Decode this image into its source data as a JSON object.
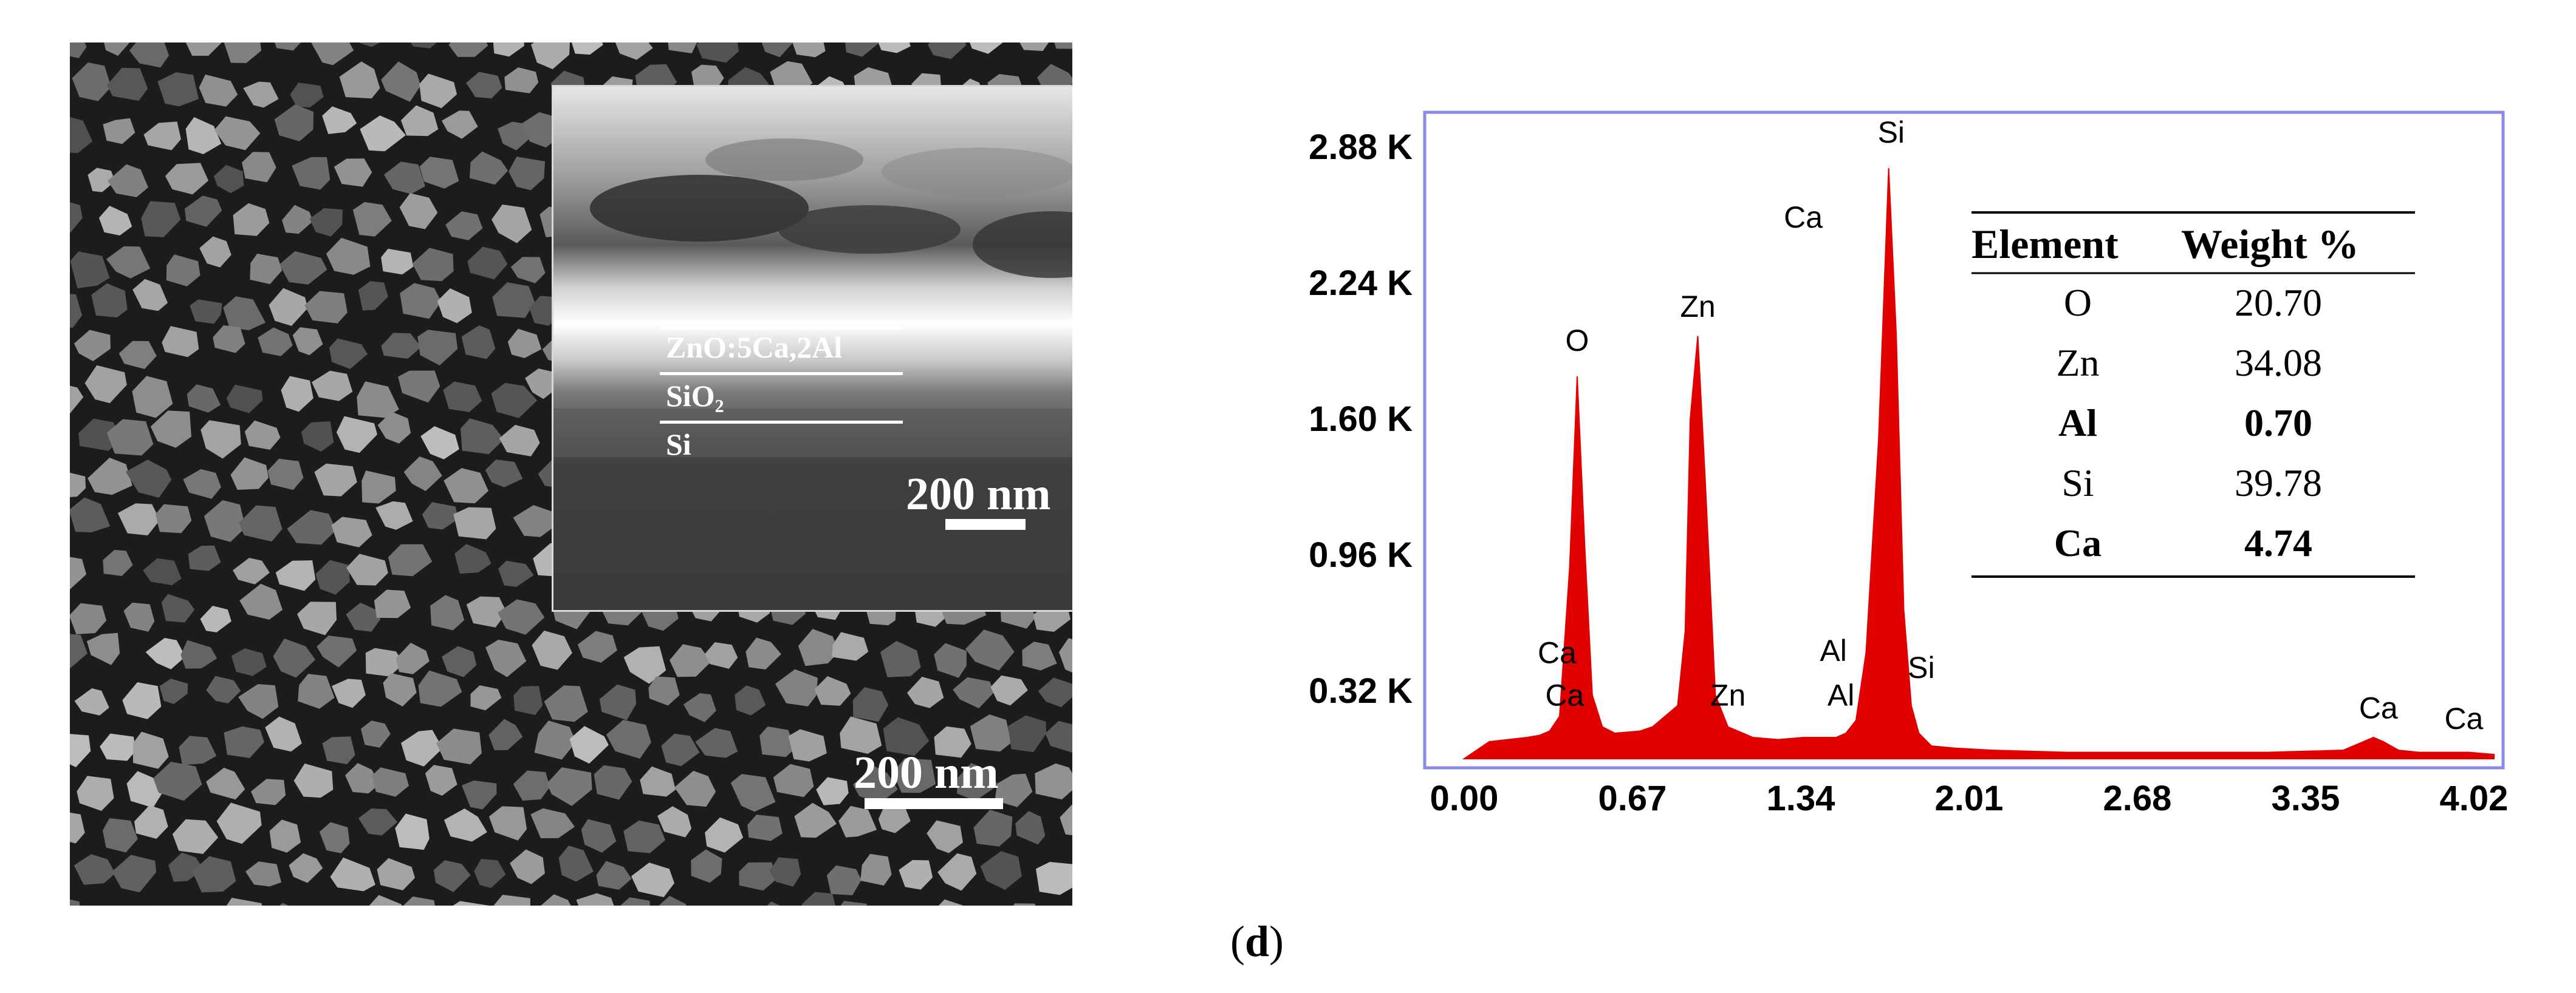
{
  "sem": {
    "scale_label": "200 nm",
    "inset": {
      "layers": [
        "ZnO:5Ca,2Al",
        "SiO₂",
        "Si"
      ],
      "scale_label": "200 nm"
    }
  },
  "chart_data": {
    "type": "line",
    "title": "",
    "xlabel": "",
    "ylabel": "",
    "xlim": [
      0.0,
      4.1
    ],
    "ylim": [
      0.0,
      3.1
    ],
    "x_ticks": [
      "0.00",
      "0.67",
      "1.34",
      "2.01",
      "2.68",
      "3.35",
      "4.02"
    ],
    "y_ticks": [
      "0.32 K",
      "0.96 K",
      "1.60 K",
      "2.24 K",
      "2.88 K"
    ],
    "series": [
      {
        "name": "EDS spectrum",
        "color": "#e00000",
        "x": [
          0.0,
          0.1,
          0.25,
          0.3,
          0.34,
          0.38,
          0.42,
          0.45,
          0.48,
          0.51,
          0.55,
          0.6,
          0.7,
          0.75,
          0.8,
          0.85,
          0.88,
          0.9,
          0.93,
          0.96,
          1.0,
          1.05,
          1.15,
          1.25,
          1.35,
          1.42,
          1.45,
          1.48,
          1.52,
          1.56,
          1.6,
          1.65,
          1.69,
          1.72,
          1.75,
          1.78,
          1.81,
          1.86,
          1.95,
          2.1,
          2.4,
          2.8,
          3.2,
          3.5,
          3.58,
          3.62,
          3.66,
          3.72,
          3.8,
          4.0,
          4.1
        ],
        "y": [
          0.0,
          0.08,
          0.1,
          0.11,
          0.13,
          0.2,
          0.9,
          1.8,
          1.0,
          0.3,
          0.15,
          0.12,
          0.13,
          0.15,
          0.2,
          0.25,
          0.6,
          1.6,
          1.99,
          1.3,
          0.3,
          0.15,
          0.1,
          0.09,
          0.1,
          0.1,
          0.1,
          0.1,
          0.12,
          0.18,
          0.5,
          1.5,
          2.78,
          2.0,
          0.7,
          0.25,
          0.12,
          0.06,
          0.05,
          0.04,
          0.03,
          0.03,
          0.03,
          0.04,
          0.08,
          0.1,
          0.08,
          0.04,
          0.03,
          0.03,
          0.02
        ]
      }
    ],
    "peak_labels": [
      {
        "text": "Ca",
        "x": 0.37,
        "y": 0.45
      },
      {
        "text": "Ca",
        "x": 0.4,
        "y": 0.25
      },
      {
        "text": "O",
        "x": 0.45,
        "y": 1.92
      },
      {
        "text": "Zn",
        "x": 0.93,
        "y": 2.08
      },
      {
        "text": "Zn",
        "x": 1.05,
        "y": 0.25
      },
      {
        "text": "Ca",
        "x": 1.35,
        "y": 2.5
      },
      {
        "text": "Al",
        "x": 1.47,
        "y": 0.46
      },
      {
        "text": "Al",
        "x": 1.5,
        "y": 0.25
      },
      {
        "text": "Si",
        "x": 1.7,
        "y": 2.9
      },
      {
        "text": "Si",
        "x": 1.82,
        "y": 0.38
      },
      {
        "text": "Ca",
        "x": 3.64,
        "y": 0.19
      },
      {
        "text": "Ca",
        "x": 3.98,
        "y": 0.14
      }
    ],
    "table": {
      "headers": [
        "Element",
        "Weight %"
      ],
      "rows": [
        {
          "element": "O",
          "weight": "20.70",
          "bold": false
        },
        {
          "element": "Zn",
          "weight": "34.08",
          "bold": false
        },
        {
          "element": "Al",
          "weight": "0.70",
          "bold": true
        },
        {
          "element": "Si",
          "weight": "39.78",
          "bold": false
        },
        {
          "element": "Ca",
          "weight": "4.74",
          "bold": true
        }
      ]
    }
  },
  "panel_label": "d"
}
